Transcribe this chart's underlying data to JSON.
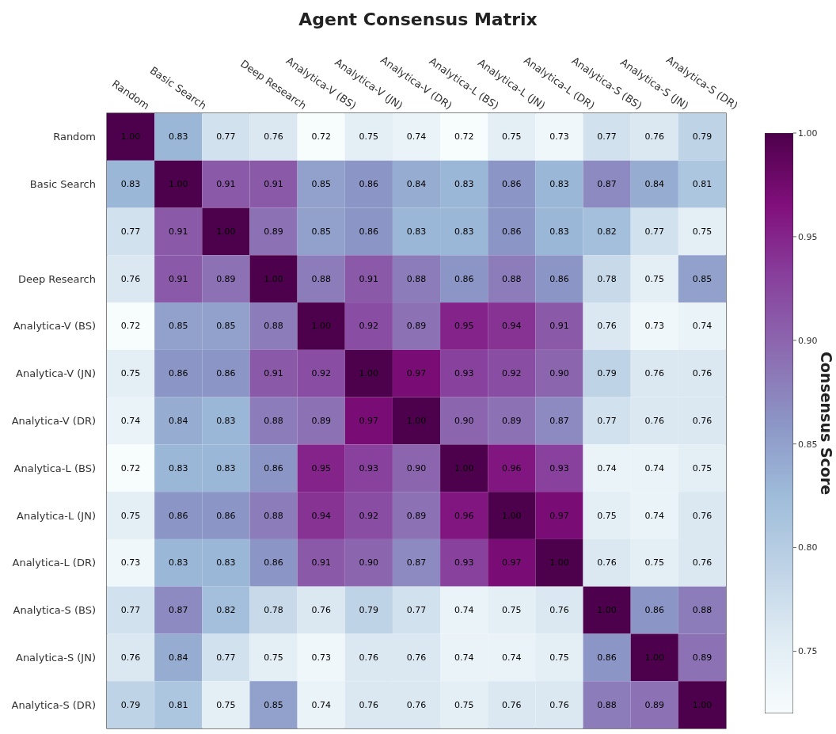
{
  "chart_data": {
    "type": "heatmap",
    "title": "Agent Consensus Matrix",
    "clabel": "Consensus Score",
    "categories": [
      "Random",
      "Basic Search",
      null,
      "Deep Research",
      "Analytica-V (BS)",
      "Analytica-V (JN)",
      "Analytica-V (DR)",
      "Analytica-L (BS)",
      "Analytica-L (JN)",
      "Analytica-L (DR)",
      "Analytica-S (BS)",
      "Analytica-S (JN)",
      "Analytica-S (DR)"
    ],
    "y_categories": [
      "Random",
      "Basic Search",
      null,
      "Deep Research",
      "Analytica-V (BS)",
      "Analytica-V (JN)",
      "Analytica-V (DR)",
      "Analytica-L (BS)",
      "Analytica-L (JN)",
      "Analytica-L (DR)",
      "Analytica-S (BS)",
      "Analytica-S (JN)",
      "Analytica-S (DR)"
    ],
    "cells": [
      [
        1.0,
        0.83,
        0.77,
        0.76,
        0.72,
        0.75,
        0.74,
        0.72,
        0.75,
        0.73,
        0.77,
        0.76,
        0.79
      ],
      [
        0.83,
        1.0,
        0.91,
        0.91,
        0.85,
        0.86,
        0.84,
        0.83,
        0.86,
        0.83,
        0.87,
        0.84,
        0.81
      ],
      [
        0.77,
        0.91,
        1.0,
        0.89,
        0.85,
        0.86,
        0.83,
        0.83,
        0.86,
        0.83,
        0.82,
        0.77,
        0.75
      ],
      [
        0.76,
        0.91,
        0.89,
        1.0,
        0.88,
        0.91,
        0.88,
        0.86,
        0.88,
        0.86,
        0.78,
        0.75,
        0.85
      ],
      [
        0.72,
        0.85,
        0.85,
        0.88,
        1.0,
        0.92,
        0.89,
        0.95,
        0.94,
        0.91,
        0.76,
        0.73,
        0.74
      ],
      [
        0.75,
        0.86,
        0.86,
        0.91,
        0.92,
        1.0,
        0.97,
        0.93,
        0.92,
        0.9,
        0.79,
        0.76,
        0.76
      ],
      [
        0.74,
        0.84,
        0.83,
        0.88,
        0.89,
        0.97,
        1.0,
        0.9,
        0.89,
        0.87,
        0.77,
        0.76,
        0.76
      ],
      [
        0.72,
        0.83,
        0.83,
        0.86,
        0.95,
        0.93,
        0.9,
        1.0,
        0.96,
        0.93,
        0.74,
        0.74,
        0.75
      ],
      [
        0.75,
        0.86,
        0.86,
        0.88,
        0.94,
        0.92,
        0.89,
        0.96,
        1.0,
        0.97,
        0.75,
        0.74,
        0.76
      ],
      [
        0.73,
        0.83,
        0.83,
        0.86,
        0.91,
        0.9,
        0.87,
        0.93,
        0.97,
        1.0,
        0.76,
        0.75,
        0.76
      ],
      [
        0.77,
        0.87,
        0.82,
        0.78,
        0.76,
        0.79,
        0.77,
        0.74,
        0.75,
        0.76,
        1.0,
        0.86,
        0.88
      ],
      [
        0.76,
        0.84,
        0.77,
        0.75,
        0.73,
        0.76,
        0.76,
        0.74,
        0.74,
        0.75,
        0.86,
        1.0,
        0.89
      ],
      [
        0.79,
        0.81,
        0.75,
        0.85,
        0.74,
        0.76,
        0.76,
        0.75,
        0.76,
        0.76,
        0.88,
        0.89,
        1.0
      ]
    ],
    "cell_labels": [
      [
        "1.00",
        "0.83",
        "0.77",
        "0.76",
        "0.72",
        "0.75",
        "0.74",
        "0.72",
        "0.75",
        "0.73",
        "0.77",
        "0.76",
        "0.79"
      ],
      [
        "0.83",
        "1.00",
        "0.91",
        "0.91",
        "0.85",
        "0.86",
        "0.84",
        "0.83",
        "0.86",
        "0.83",
        "0.87",
        "0.84",
        "0.81"
      ],
      [
        "0.77",
        "0.91",
        "1.00",
        "0.89",
        "0.85",
        "0.86",
        "0.83",
        "0.83",
        "0.86",
        "0.83",
        "0.82",
        "0.77",
        "0.75"
      ],
      [
        "0.76",
        "0.91",
        "0.89",
        "1.00",
        "0.88",
        "0.91",
        "0.88",
        "0.86",
        "0.88",
        "0.86",
        "0.78",
        "0.75",
        "0.85"
      ],
      [
        "0.72",
        "0.85",
        "0.85",
        "0.88",
        "1.00",
        "0.92",
        "0.89",
        "0.95",
        "0.94",
        "0.91",
        "0.76",
        "0.73",
        "0.74"
      ],
      [
        "0.75",
        "0.86",
        "0.86",
        "0.91",
        "0.92",
        "1.00",
        "0.97",
        "0.93",
        "0.92",
        "0.90",
        "0.79",
        "0.76",
        "0.76"
      ],
      [
        "0.74",
        "0.84",
        "0.83",
        "0.88",
        "0.89",
        "0.97",
        "1.00",
        "0.90",
        "0.89",
        "0.87",
        "0.77",
        "0.76",
        "0.76"
      ],
      [
        "0.72",
        "0.83",
        "0.83",
        "0.86",
        "0.95",
        "0.93",
        "0.90",
        "1.00",
        "0.96",
        "0.93",
        "0.74",
        "0.74",
        "0.75"
      ],
      [
        "0.75",
        "0.86",
        "0.86",
        "0.88",
        "0.94",
        "0.92",
        "0.89",
        "0.96",
        "1.00",
        "0.97",
        "0.75",
        "0.74",
        "0.76"
      ],
      [
        "0.73",
        "0.83",
        "0.83",
        "0.86",
        "0.91",
        "0.90",
        "0.87",
        "0.93",
        "0.97",
        "1.00",
        "0.76",
        "0.75",
        "0.76"
      ],
      [
        "0.77",
        "0.87",
        "0.82",
        "0.78",
        "0.76",
        "0.79",
        "0.77",
        "0.74",
        "0.75",
        "0.76",
        "1.00",
        "0.86",
        "0.88"
      ],
      [
        "0.76",
        "0.84",
        "0.77",
        "0.75",
        "0.73",
        "0.76",
        "0.76",
        "0.74",
        "0.74",
        "0.75",
        "0.86",
        "1.00",
        "0.89"
      ],
      [
        "0.79",
        "0.81",
        "0.75",
        "0.85",
        "0.74",
        "0.76",
        "0.76",
        "0.75",
        "0.76",
        "0.76",
        "0.88",
        "0.89",
        "1.00"
      ]
    ],
    "clim": [
      0.72,
      1.0
    ],
    "cticks": [
      {
        "value": 0.75,
        "label": "0.75"
      },
      {
        "value": 0.8,
        "label": "0.80"
      },
      {
        "value": 0.85,
        "label": "0.85"
      },
      {
        "value": 0.9,
        "label": "0.90"
      },
      {
        "value": 0.95,
        "label": "0.95"
      },
      {
        "value": 1.0,
        "label": "1.00"
      }
    ]
  }
}
